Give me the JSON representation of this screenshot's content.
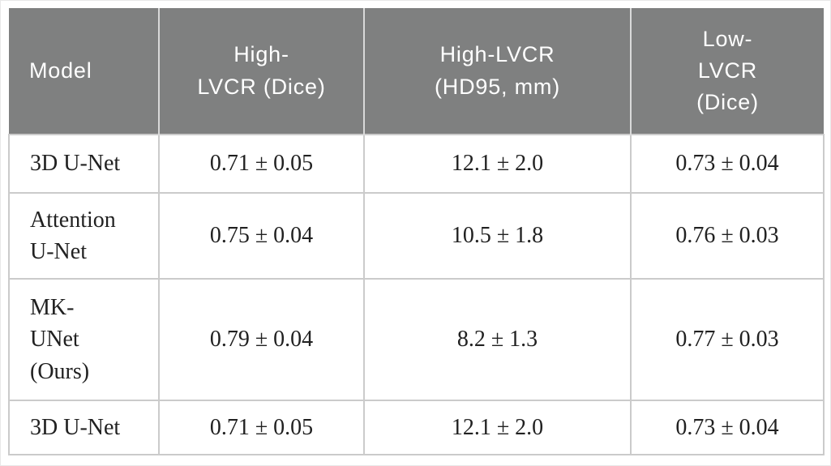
{
  "colors": {
    "header_bg": "#7f8080",
    "header_text": "#ffffff",
    "header_separator": "#d9d9d9",
    "body_text": "#212121",
    "grid_line": "#cbcbcb",
    "page_bg": "#ffffff"
  },
  "chart_data": {
    "type": "table",
    "columns": [
      "Model",
      "High-LVCR (Dice)",
      "High-LVCR (HD95, mm)",
      "Low-LVCR (Dice)"
    ],
    "rows": [
      [
        "3D U-Net",
        "0.71 ± 0.05",
        "12.1 ± 2.0",
        "0.73 ± 0.04"
      ],
      [
        "Attention U-Net",
        "0.75 ± 0.04",
        "10.5 ± 1.8",
        "0.76 ± 0.03"
      ],
      [
        "MK-UNet (Ours)",
        "0.79 ± 0.04",
        "8.2 ± 1.3",
        "0.77 ± 0.03"
      ],
      [
        "3D U-Net",
        "0.71 ± 0.05",
        "12.1 ± 2.0",
        "0.73 ± 0.04"
      ]
    ]
  },
  "table": {
    "columns": [
      {
        "label": "Model"
      },
      {
        "label": "High-\nLVCR (Dice)"
      },
      {
        "label": "High-LVCR\n(HD95, mm)"
      },
      {
        "label": "Low-\nLVCR\n(Dice)"
      }
    ],
    "rows": [
      {
        "model": "3D U-Net",
        "high_lvcr_dice": "0.71 ± 0.05",
        "high_lvcr_hd95": "12.1 ± 2.0",
        "low_lvcr_dice": "0.73 ± 0.04"
      },
      {
        "model": "Attention\nU-Net",
        "high_lvcr_dice": "0.75 ± 0.04",
        "high_lvcr_hd95": "10.5 ± 1.8",
        "low_lvcr_dice": "0.76 ± 0.03"
      },
      {
        "model": "MK-\nUNet\n(Ours)",
        "high_lvcr_dice": "0.79 ± 0.04",
        "high_lvcr_hd95": "8.2 ± 1.3",
        "low_lvcr_dice": "0.77 ± 0.03"
      },
      {
        "model": "3D U-Net",
        "high_lvcr_dice": "0.71 ± 0.05",
        "high_lvcr_hd95": "12.1 ± 2.0",
        "low_lvcr_dice": "0.73 ± 0.04"
      }
    ]
  }
}
